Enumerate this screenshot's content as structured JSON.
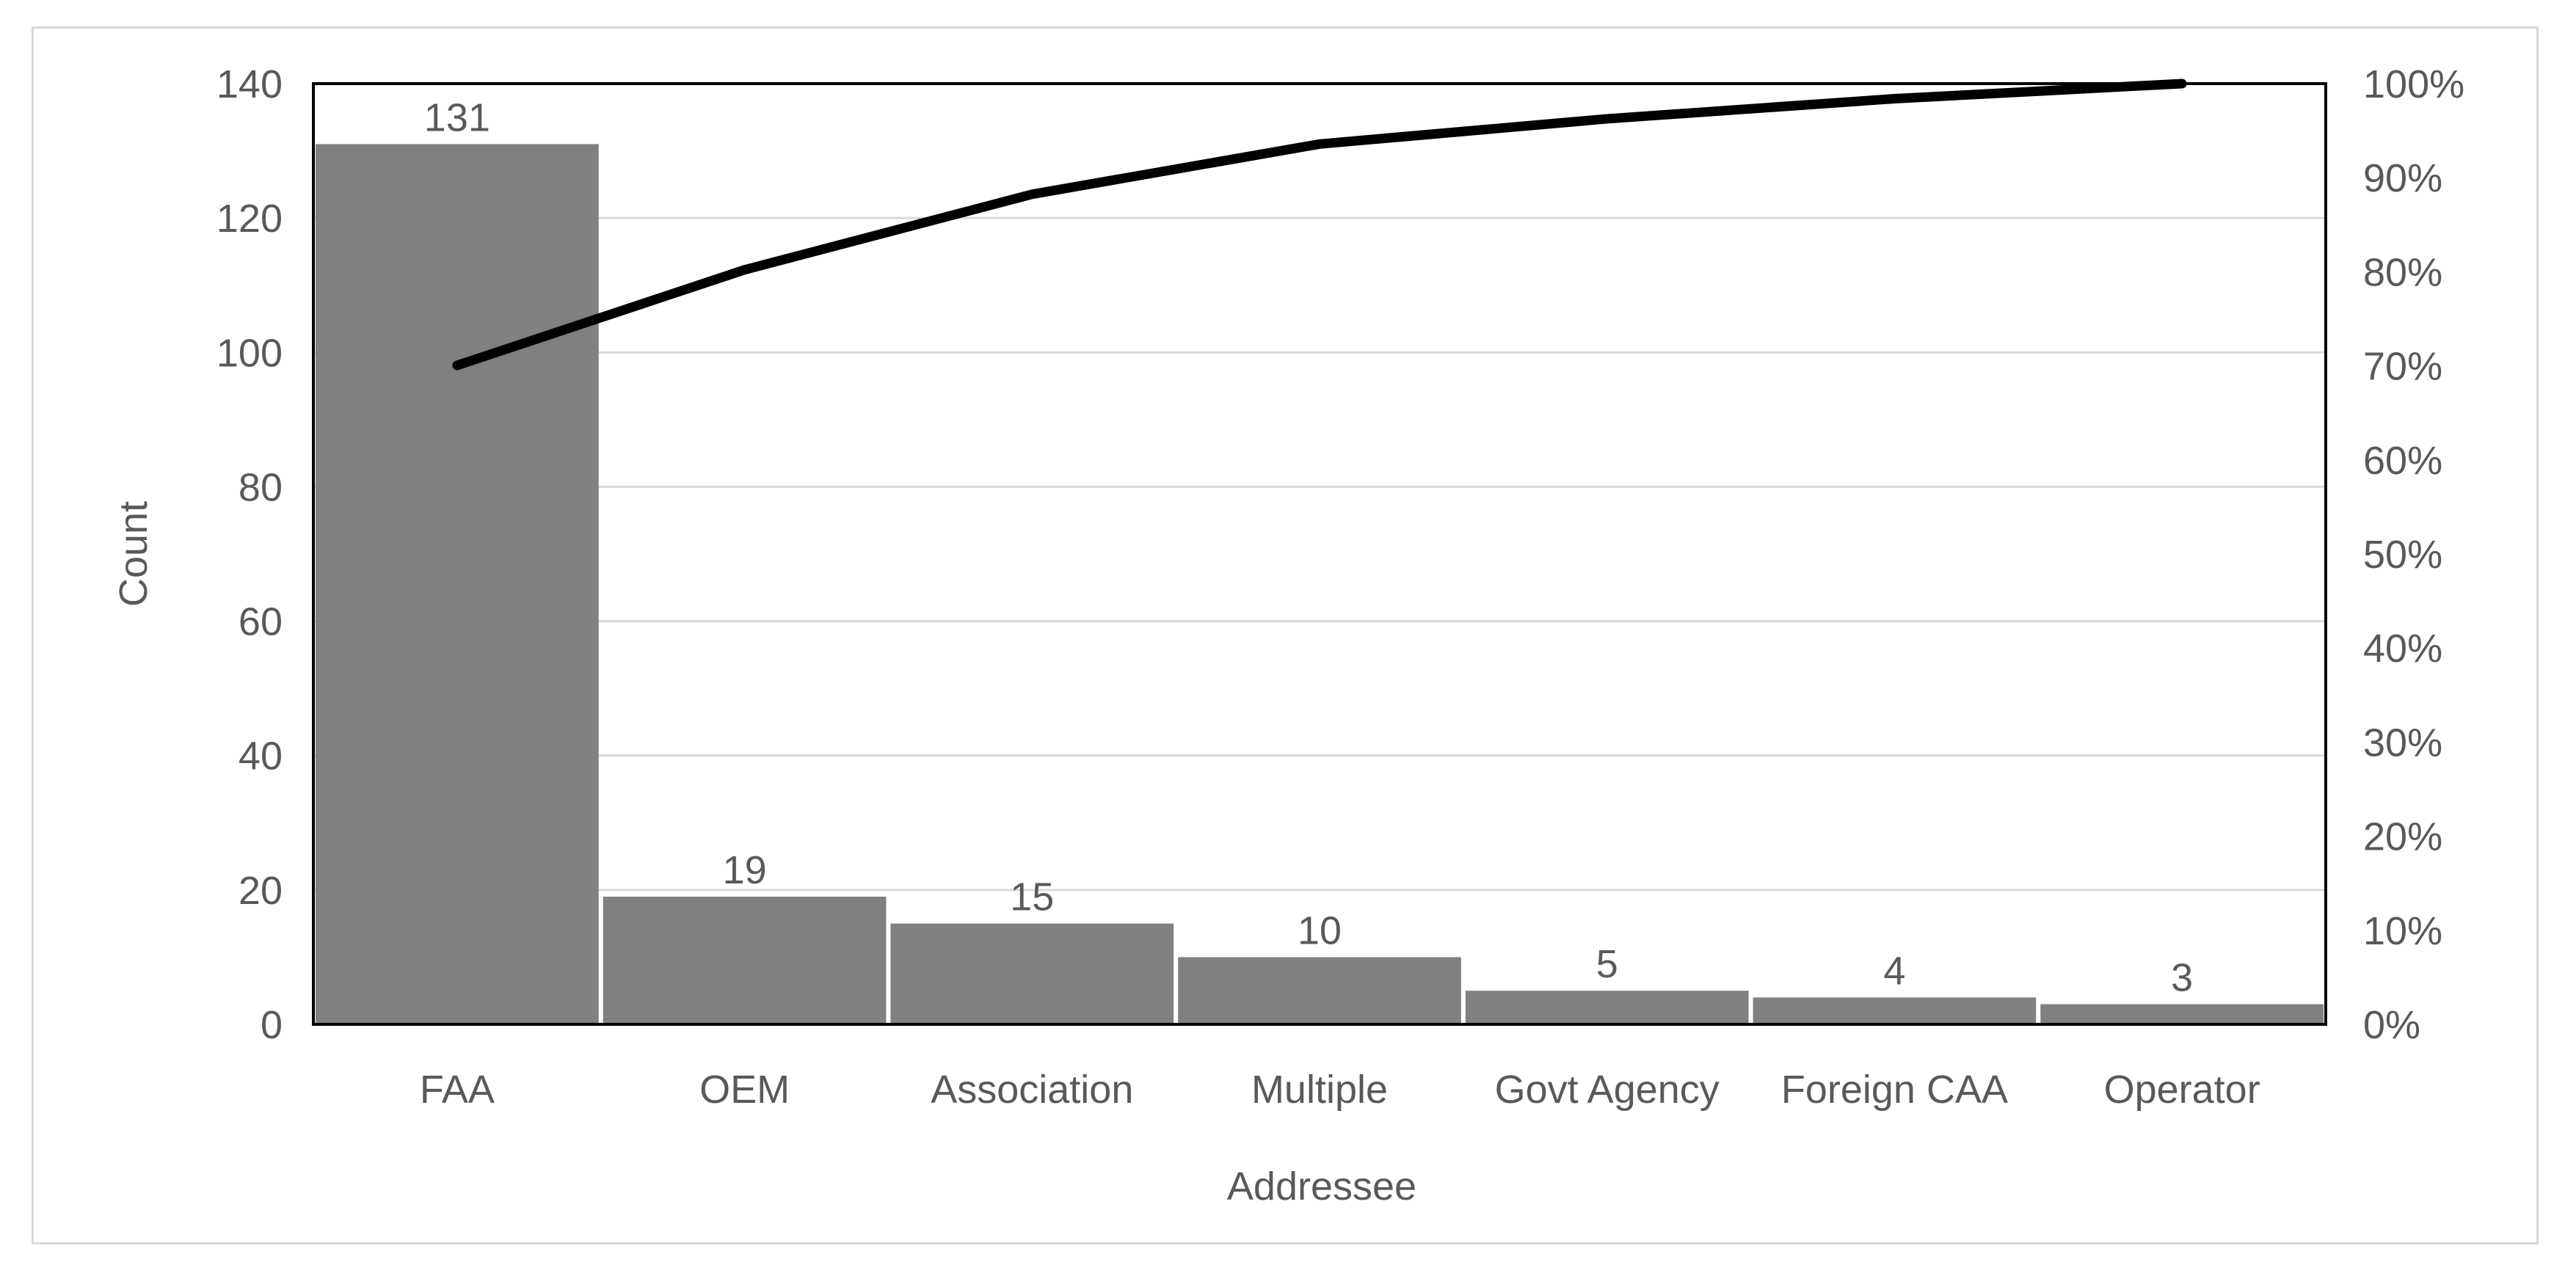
{
  "chart_data": {
    "type": "bar",
    "title": "",
    "xlabel": "Addressee",
    "ylabel": "Count",
    "categories": [
      "FAA",
      "OEM",
      "Association",
      "Multiple",
      "Govt Agency",
      "Foreign CAA",
      "Operator"
    ],
    "series": [
      {
        "values": [
          131,
          19,
          15,
          10,
          5,
          4,
          3
        ],
        "type": "bar",
        "axis": "left",
        "color": "#808080"
      },
      {
        "values": [
          0.7005,
          0.8021,
          0.8824,
          0.9358,
          0.9626,
          0.984,
          1.0
        ],
        "type": "line",
        "axis": "right",
        "color": "#000000"
      }
    ],
    "data_labels": [
      "131",
      "19",
      "15",
      "10",
      "5",
      "4",
      "3"
    ],
    "ylim": [
      0,
      140
    ],
    "yticks": [
      "0",
      "20",
      "40",
      "60",
      "80",
      "100",
      "120",
      "140"
    ],
    "y2lim": [
      0,
      1
    ],
    "y2ticks": [
      "0%",
      "10%",
      "20%",
      "30%",
      "40%",
      "50%",
      "60%",
      "70%",
      "80%",
      "90%",
      "100%"
    ],
    "grid": true,
    "legend": "none"
  }
}
